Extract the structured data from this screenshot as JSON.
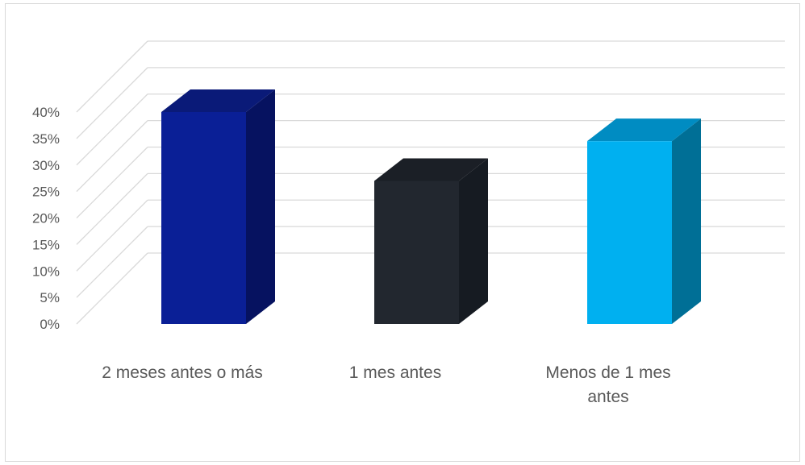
{
  "chart_data": {
    "type": "bar",
    "title": "",
    "xlabel": "",
    "ylabel": "",
    "categories": [
      [
        "2 meses antes o más"
      ],
      [
        "1 mes antes"
      ],
      [
        "Menos de 1 mes",
        "antes"
      ]
    ],
    "values": [
      40,
      27,
      34.5
    ],
    "value_unit": "%",
    "ylim": [
      0,
      40
    ],
    "yticks": [
      "0%",
      "5%",
      "10%",
      "15%",
      "20%",
      "25%",
      "30%",
      "35%",
      "40%"
    ],
    "grid": true,
    "legend": "none",
    "colors": {
      "front": [
        "#0a1f96",
        "#22272f",
        "#00b0f0"
      ],
      "side": [
        "#061260",
        "#161b22",
        "#006f96"
      ],
      "top": [
        "#0a1a78",
        "#1b1f26",
        "#008cc2"
      ],
      "grid": "#d9d9d9",
      "text": "#595959"
    }
  }
}
